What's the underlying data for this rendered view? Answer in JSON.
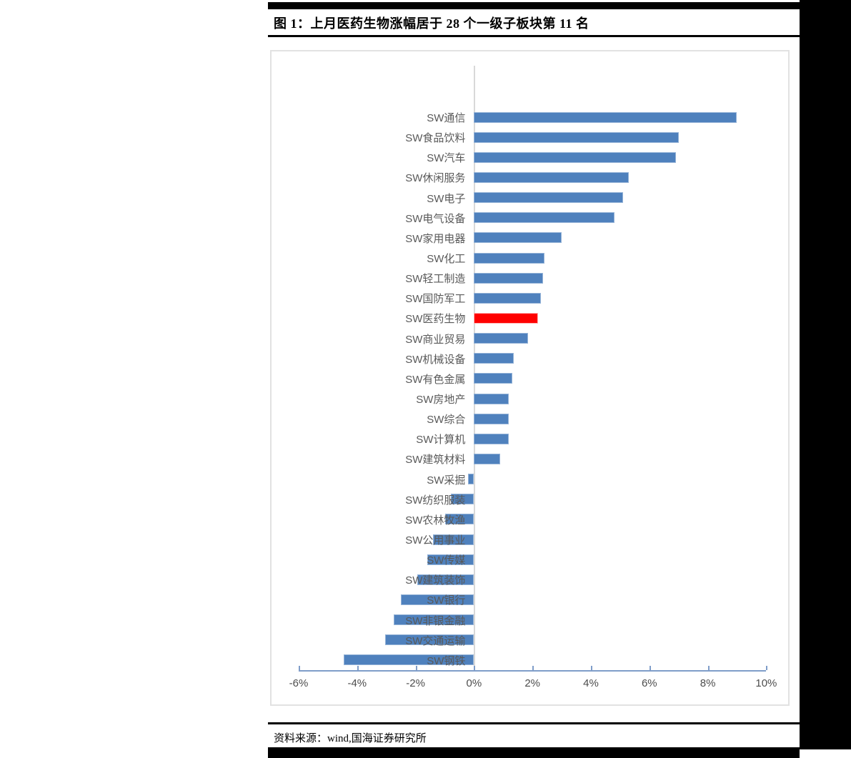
{
  "figure": {
    "title": "图 1：上月医药生物涨幅居于 28 个一级子板块第 11 名",
    "source": "资料来源：wind,国海证券研究所"
  },
  "chart_data": {
    "type": "bar",
    "orientation": "horizontal",
    "title": "上月医药生物涨幅居于 28 个一级子板块第 11 名",
    "xlabel": "",
    "ylabel": "",
    "xlim": [
      -6,
      10
    ],
    "x_ticks_labels": [
      "-6%",
      "-4%",
      "-2%",
      "0%",
      "2%",
      "4%",
      "6%",
      "8%",
      "10%"
    ],
    "x_tick_values": [
      -6,
      -4,
      -2,
      0,
      2,
      4,
      6,
      8,
      10
    ],
    "grid": "zero-axis line only",
    "legend": "none",
    "unit": "%",
    "categories": [
      "SW通信",
      "SW食品饮料",
      "SW汽车",
      "SW休闲服务",
      "SW电子",
      "SW电气设备",
      "SW家用电器",
      "SW化工",
      "SW轻工制造",
      "SW国防军工",
      "SW医药生物",
      "SW商业贸易",
      "SW机械设备",
      "SW有色金属",
      "SW房地产",
      "SW综合",
      "SW计算机",
      "SW建筑材料",
      "SW采掘",
      "SW纺织服装",
      "SW农林牧渔",
      "SW公用事业",
      "SW传媒",
      "SW建筑装饰",
      "SW银行",
      "SW非银金融",
      "SW交通运输",
      "SW钢铁"
    ],
    "values": [
      9.0,
      7.0,
      6.9,
      5.3,
      5.1,
      4.8,
      3.0,
      2.4,
      2.35,
      2.3,
      2.2,
      1.85,
      1.35,
      1.3,
      1.2,
      1.2,
      1.2,
      0.9,
      -0.2,
      -0.8,
      -1.0,
      -1.4,
      -1.6,
      -1.95,
      -2.5,
      -2.75,
      -3.05,
      -4.45
    ],
    "highlight_category": "SW医药生物",
    "bar_color": "#4f81bd",
    "bar_border_color": "#95b3d7",
    "highlight_color": "#ff0000",
    "highlight_border_color": "#ffb3b3",
    "axis_color": "#7f9dc9",
    "gridline_color": "#d9d9d9",
    "label_color": "#595959"
  }
}
